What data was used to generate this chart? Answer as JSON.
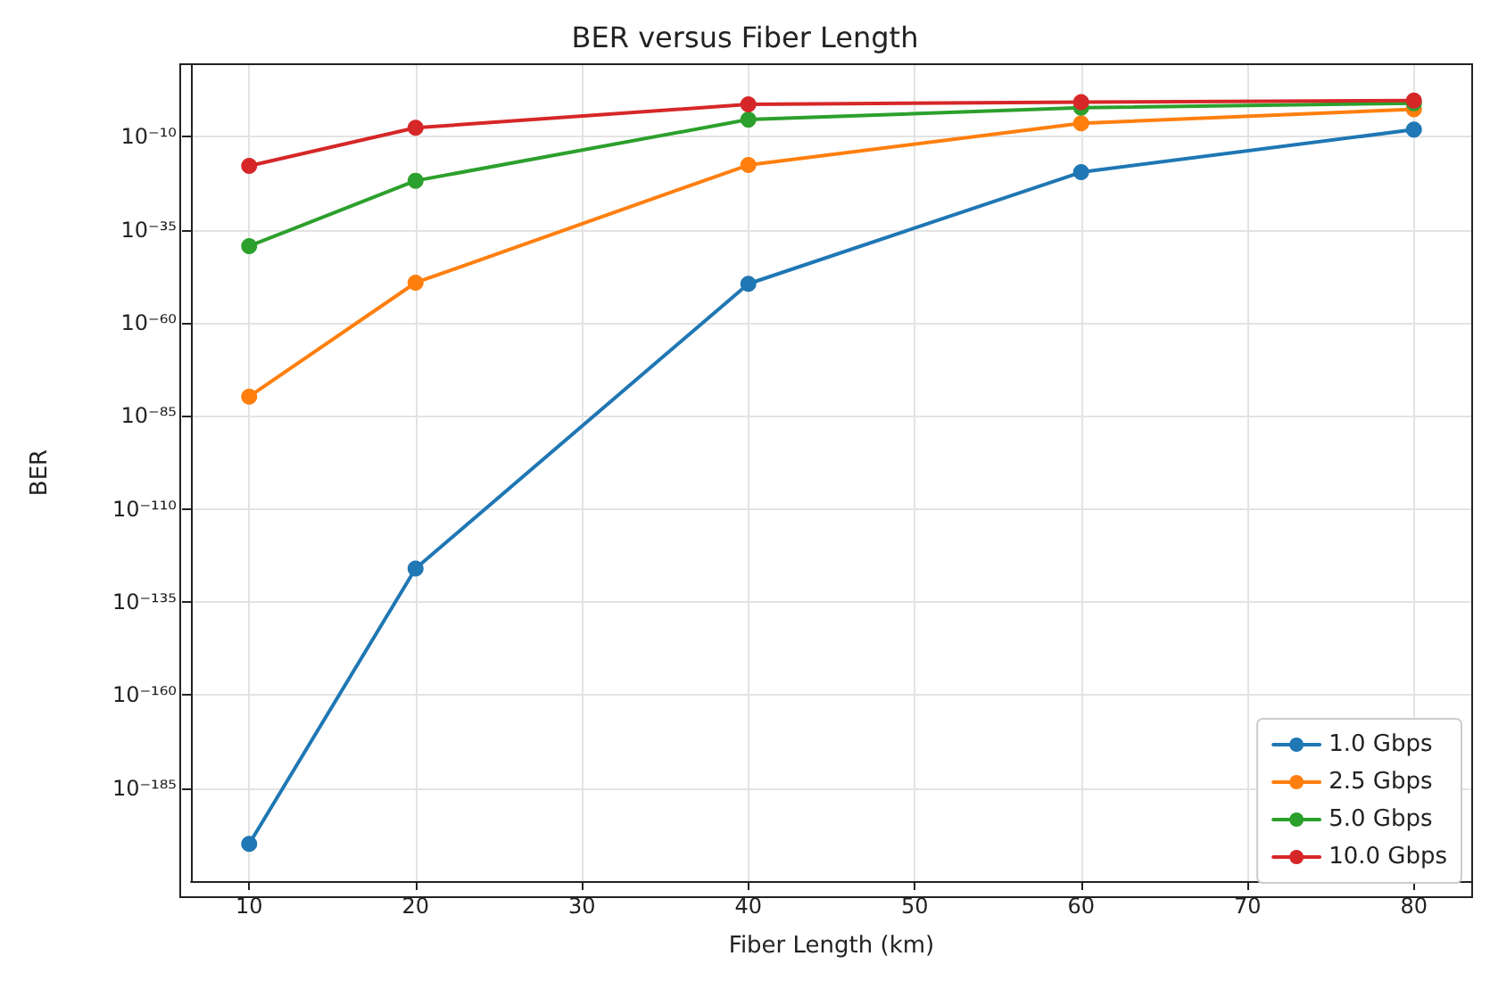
{
  "chart_data": {
    "type": "line",
    "title": "BER versus Fiber Length",
    "xlabel": "Fiber Length (km)",
    "ylabel": "BER",
    "x": [
      10,
      20,
      40,
      60,
      80
    ],
    "series": [
      {
        "name": "1.0 Gbps",
        "color": "#1f77b4",
        "values": [
          1e-200,
          1e-126,
          3e-50,
          3e-20,
          8e-09
        ]
      },
      {
        "name": "2.5 Gbps",
        "color": "#ff7f0e",
        "values": [
          1.5e-80,
          6e-50,
          2.5e-18,
          4e-07,
          0.0025
        ]
      },
      {
        "name": "5.0 Gbps",
        "color": "#2ca02c",
        "values": [
          4e-40,
          1.5e-22,
          4e-06,
          0.006,
          0.1
        ]
      },
      {
        "name": "10.0 Gbps",
        "color": "#d62728",
        "values": [
          1.5e-18,
          2.5e-08,
          0.05,
          0.2,
          0.5
        ]
      }
    ],
    "log": "y",
    "xlim": [
      6.5,
      83.5
    ],
    "xticks": [
      10,
      20,
      30,
      40,
      50,
      60,
      70,
      80
    ],
    "ylim": [
      1e-210,
      3000000000.0
    ],
    "yticks": [
      {
        "value": 1e-185,
        "label": "10⁻¹⁸⁵"
      },
      {
        "value": 1e-160,
        "label": "10⁻¹⁶⁰"
      },
      {
        "value": 1e-135,
        "label": "10⁻¹³⁵"
      },
      {
        "value": 1e-110,
        "label": "10⁻¹¹⁰"
      },
      {
        "value": 1e-85,
        "label": "10⁻⁸⁵"
      },
      {
        "value": 1e-60,
        "label": "10⁻⁶⁰"
      },
      {
        "value": 1e-35,
        "label": "10⁻³⁵"
      },
      {
        "value": 1e-10,
        "label": "10⁻¹⁰"
      }
    ],
    "grid": true,
    "legend": "bottom right",
    "marker": "circle",
    "line_style": "solid"
  }
}
